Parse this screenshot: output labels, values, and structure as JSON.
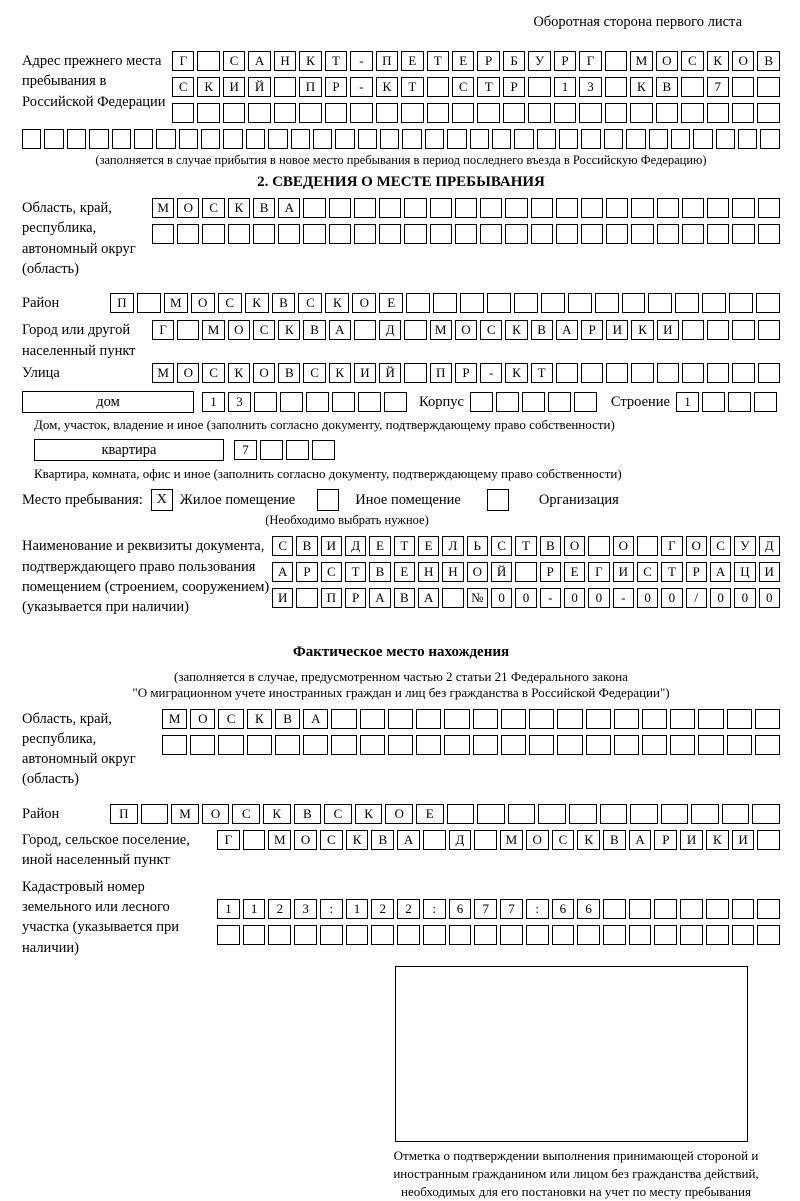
{
  "colors": {
    "ink": "#000000",
    "paper": "#ffffff"
  },
  "header_note": "Оборотная сторона первого листа",
  "prev_address": {
    "label": "Адрес прежнего места пребывания в Российской Федерации",
    "row1": [
      "Г",
      "",
      "С",
      "А",
      "Н",
      "К",
      "Т",
      "-",
      "П",
      "Е",
      "Т",
      "Е",
      "Р",
      "Б",
      "У",
      "Р",
      "Г",
      "",
      "М",
      "О",
      "С",
      "К",
      "О",
      "В"
    ],
    "row2": [
      "С",
      "К",
      "И",
      "Й",
      "",
      "П",
      "Р",
      "-",
      "К",
      "Т",
      "",
      "С",
      "Т",
      "Р",
      "",
      "1",
      "3",
      "",
      "К",
      "В",
      "",
      "7",
      "",
      ""
    ],
    "row3": [
      "",
      "",
      "",
      "",
      "",
      "",
      "",
      "",
      "",
      "",
      "",
      "",
      "",
      "",
      "",
      "",
      "",
      "",
      "",
      "",
      "",
      "",
      "",
      ""
    ],
    "row4": [
      "",
      "",
      "",
      "",
      "",
      "",
      "",
      "",
      "",
      "",
      "",
      "",
      "",
      "",
      "",
      "",
      "",
      "",
      "",
      "",
      "",
      "",
      "",
      "",
      "",
      "",
      "",
      "",
      "",
      "",
      "",
      "",
      "",
      ""
    ],
    "note": "(заполняется в случае прибытия в новое место пребывания в период последнего въезда в Российскую Федерацию)"
  },
  "section2": {
    "title": "2. СВЕДЕНИЯ О МЕСТЕ ПРЕБЫВАНИЯ",
    "region": {
      "label": "Область, край, республика, автономный округ (область)",
      "row1": [
        "М",
        "О",
        "С",
        "К",
        "В",
        "А",
        "",
        "",
        "",
        "",
        "",
        "",
        "",
        "",
        "",
        "",
        "",
        "",
        "",
        "",
        "",
        "",
        "",
        "",
        ""
      ],
      "row2": [
        "",
        "",
        "",
        "",
        "",
        "",
        "",
        "",
        "",
        "",
        "",
        "",
        "",
        "",
        "",
        "",
        "",
        "",
        "",
        "",
        "",
        "",
        "",
        "",
        ""
      ]
    },
    "district": {
      "label": "Район",
      "row": [
        "П",
        "",
        "М",
        "О",
        "С",
        "К",
        "В",
        "С",
        "К",
        "О",
        "Е",
        "",
        "",
        "",
        "",
        "",
        "",
        "",
        "",
        "",
        "",
        "",
        "",
        "",
        ""
      ]
    },
    "city": {
      "label": "Город или другой населенный пункт",
      "row": [
        "Г",
        "",
        "М",
        "О",
        "С",
        "К",
        "В",
        "А",
        "",
        "Д",
        "",
        "М",
        "О",
        "С",
        "К",
        "В",
        "А",
        "Р",
        "И",
        "К",
        "И",
        "",
        "",
        "",
        ""
      ]
    },
    "street": {
      "label": "Улица",
      "row": [
        "М",
        "О",
        "С",
        "К",
        "О",
        "В",
        "С",
        "К",
        "И",
        "Й",
        "",
        "П",
        "Р",
        "-",
        "К",
        "Т",
        "",
        "",
        "",
        "",
        "",
        "",
        "",
        "",
        ""
      ]
    },
    "house": {
      "box_label": "дом",
      "cells": [
        "1",
        "3",
        "",
        "",
        "",
        "",
        "",
        ""
      ],
      "korpus_label": "Корпус",
      "korpus_cells": [
        "",
        "",
        "",
        "",
        ""
      ],
      "stroenie_label": "Строение",
      "stroenie_cells": [
        "1",
        "",
        "",
        ""
      ],
      "note": "Дом, участок, владение и иное (заполнить согласно документу, подтверждающему право собственности)"
    },
    "apartment": {
      "box_label": "квартира",
      "cells": [
        "7",
        "",
        "",
        ""
      ],
      "note": "Квартира, комната, офис и иное (заполнить согласно документу, подтверждающему право собственности)"
    },
    "stay": {
      "label": "Место пребывания:",
      "options": [
        {
          "label": "Жилое помещение",
          "checked": "X"
        },
        {
          "label": "Иное помещение",
          "checked": ""
        },
        {
          "label": "Организация",
          "checked": ""
        }
      ],
      "note": "(Необходимо выбрать нужное)"
    },
    "document": {
      "label": "Наименование и реквизиты документа, подтверждающего право пользования помещением (строением, сооружением) (указывается при наличии)",
      "row1": [
        "С",
        "В",
        "И",
        "Д",
        "Е",
        "Т",
        "Е",
        "Л",
        "Ь",
        "С",
        "Т",
        "В",
        "О",
        "",
        "О",
        "",
        "Г",
        "О",
        "С",
        "У",
        "Д"
      ],
      "row2": [
        "А",
        "Р",
        "С",
        "Т",
        "В",
        "Е",
        "Н",
        "Н",
        "О",
        "Й",
        "",
        "Р",
        "Е",
        "Г",
        "И",
        "С",
        "Т",
        "Р",
        "А",
        "Ц",
        "И"
      ],
      "row3": [
        "И",
        "",
        "П",
        "Р",
        "А",
        "В",
        "А",
        "",
        "№",
        "0",
        "0",
        "-",
        "0",
        "0",
        "-",
        "0",
        "0",
        "/",
        "0",
        "0",
        "0"
      ]
    }
  },
  "actual_location": {
    "title": "Фактическое место нахождения",
    "note1": "(заполняется в случае, предусмотренном частью 2 статьи 21 Федерального закона",
    "note2": "\"О миграционном учете иностранных граждан и лиц без гражданства в Российской Федерации\")",
    "region": {
      "label": "Область, край, республика, автономный округ (область)",
      "row1": [
        "М",
        "О",
        "С",
        "К",
        "В",
        "А",
        "",
        "",
        "",
        "",
        "",
        "",
        "",
        "",
        "",
        "",
        "",
        "",
        "",
        "",
        "",
        ""
      ],
      "row2": [
        "",
        "",
        "",
        "",
        "",
        "",
        "",
        "",
        "",
        "",
        "",
        "",
        "",
        "",
        "",
        "",
        "",
        "",
        "",
        "",
        "",
        ""
      ]
    },
    "district": {
      "label": "Район",
      "row": [
        "П",
        "",
        "М",
        "О",
        "С",
        "К",
        "В",
        "С",
        "К",
        "О",
        "Е",
        "",
        "",
        "",
        "",
        "",
        "",
        "",
        "",
        "",
        "",
        ""
      ]
    },
    "city": {
      "label": "Город, сельское поселение, иной населенный пункт",
      "row": [
        "Г",
        "",
        "М",
        "О",
        "С",
        "К",
        "В",
        "А",
        "",
        "Д",
        "",
        "М",
        "О",
        "С",
        "К",
        "В",
        "А",
        "Р",
        "И",
        "К",
        "И",
        ""
      ]
    },
    "cadastral": {
      "label": "Кадастровый номер земельного или лесного участка (указывается при наличии)",
      "row1": [
        "1",
        "1",
        "2",
        "3",
        ":",
        "1",
        "2",
        "2",
        ":",
        "6",
        "7",
        "7",
        ":",
        "6",
        "6",
        "",
        "",
        "",
        "",
        "",
        "",
        ""
      ],
      "row2": [
        "",
        "",
        "",
        "",
        "",
        "",
        "",
        "",
        "",
        "",
        "",
        "",
        "",
        "",
        "",
        "",
        "",
        "",
        "",
        "",
        "",
        ""
      ]
    },
    "stamp_note": "Отметка о подтверждении выполнения принимающей стороной и иностранным гражданином или лицом без гражданства действий, необходимых для его постановки на учет по месту пребывания"
  }
}
